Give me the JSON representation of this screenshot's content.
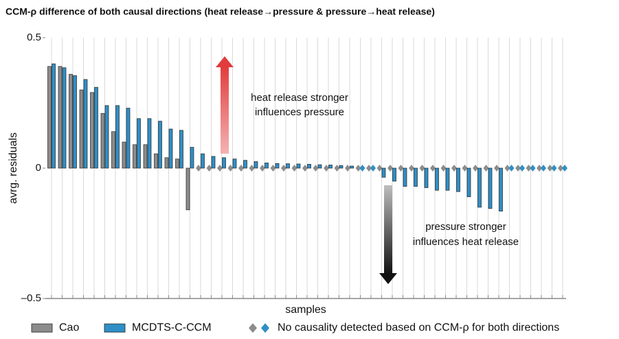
{
  "chart_data": {
    "type": "bar",
    "title": "CCM-ρ difference of both causal directions (heat release→pressure & pressure→heat release)",
    "x_label": "samples",
    "y_label": "avrg. residuals",
    "ylim": [
      -0.5,
      0.5
    ],
    "yticks": [
      {
        "value": -0.5,
        "label": "–0.5"
      },
      0,
      0.5
    ],
    "grid": true,
    "series": [
      {
        "name": "Cao",
        "color": "#8c8c8c",
        "values": [
          0.39,
          0.39,
          0.36,
          0.3,
          0.29,
          0.21,
          0.14,
          0.1,
          0.09,
          0.09,
          0.055,
          0.04,
          0.035,
          -0.16,
          null,
          null,
          null,
          null,
          null,
          null,
          null,
          null,
          null,
          null,
          null,
          null,
          null,
          null,
          null,
          null,
          null,
          null,
          null,
          null,
          null,
          null,
          null,
          null,
          null,
          null,
          null,
          null,
          null,
          null,
          null,
          null,
          null,
          null,
          null
        ]
      },
      {
        "name": "MCDTS-C-CCM",
        "color": "#2f8fc6",
        "values": [
          0.4,
          0.385,
          0.355,
          0.34,
          0.31,
          0.24,
          0.24,
          0.23,
          0.19,
          0.19,
          0.18,
          0.15,
          0.145,
          0.08,
          0.055,
          0.045,
          0.04,
          0.035,
          0.03,
          0.025,
          0.02,
          0.018,
          0.017,
          0.016,
          0.015,
          0.013,
          0.012,
          0.01,
          0.008,
          null,
          null,
          -0.035,
          -0.05,
          -0.07,
          -0.07,
          -0.075,
          -0.085,
          -0.085,
          -0.09,
          -0.11,
          -0.15,
          -0.155,
          -0.165,
          null,
          null,
          null,
          null,
          null,
          null
        ]
      }
    ],
    "null_legend": "No causality detected based on CCM-ρ for both directions",
    "annotations": [
      [
        "heat release stronger",
        "influences pressure"
      ],
      [
        "pressure stronger",
        "influences heat release"
      ]
    ]
  }
}
